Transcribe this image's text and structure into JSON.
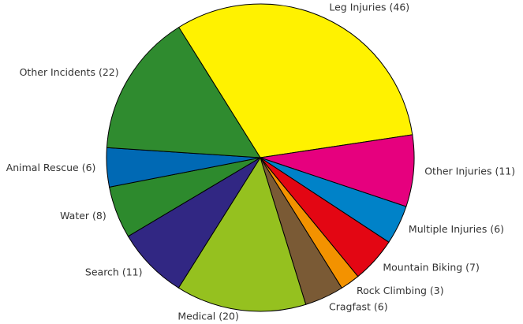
{
  "chart_data": {
    "type": "pie",
    "categories": [
      "Leg Injuries (46)",
      "Other Injuries (11)",
      "Multiple Injuries (6)",
      "Mountain Biking (7)",
      "Rock Climbing (3)",
      "Cragfast (6)",
      "Medical (20)",
      "Search (11)",
      "Water (8)",
      "Animal Rescue (6)",
      "Other Incidents (22)"
    ],
    "values": [
      46,
      11,
      6,
      7,
      3,
      6,
      20,
      11,
      8,
      6,
      22
    ],
    "colors": [
      "#fff200",
      "#e6007e",
      "#0082c8",
      "#e30613",
      "#f39200",
      "#7a5a35",
      "#95c11f",
      "#312783",
      "#2d8a2d",
      "#0069b4",
      "#2f8b2f"
    ]
  }
}
